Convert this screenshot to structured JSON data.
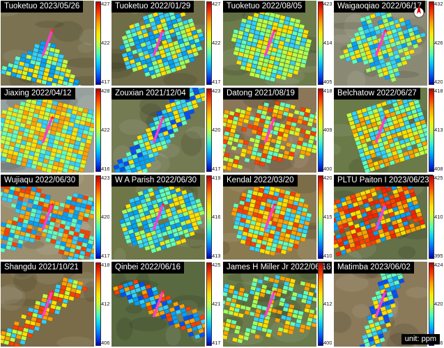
{
  "unit_label": "unit: ppm",
  "compass_icon": "north-arrow-icon",
  "panels": [
    {
      "title": "Tuoketuo 2023/05/26",
      "ticks": [
        "427",
        "422",
        "417"
      ],
      "bg": "#7a7250",
      "shape": "fan",
      "data_colors": [
        "#00a0ff",
        "#30d0ff",
        "#60ffc0",
        "#c0ff40",
        "#ffe000"
      ]
    },
    {
      "title": "Tuoketuo 2022/01/29",
      "ticks": [
        "427",
        "422",
        "417"
      ],
      "bg": "#6f6c48",
      "shape": "blob",
      "data_colors": [
        "#30d0ff",
        "#60ffc0",
        "#a0ff60",
        "#ffe000",
        "#00a0ff"
      ]
    },
    {
      "title": "Tuoketuo 2022/08/05",
      "ticks": [
        "423",
        "414",
        "405"
      ],
      "bg": "#6d7a4a",
      "shape": "circle",
      "data_colors": [
        "#60ffc0",
        "#a0ff60",
        "#30d0ff",
        "#ffe000",
        "#c0ff40"
      ]
    },
    {
      "title": "Waigaoqiao 2022/06/17",
      "ticks": [
        "432",
        "426",
        "420"
      ],
      "bg": "#8a8a74",
      "shape": "diamond",
      "data_colors": [
        "#30d0ff",
        "#60ffc0",
        "#00a0ff",
        "#a0ff60",
        "#ffe000"
      ]
    },
    {
      "title": "Jiaxing 2022/04/12",
      "ticks": [
        "428",
        "422",
        "416"
      ],
      "bg": "#97a09c",
      "shape": "wide",
      "data_colors": [
        "#ffe000",
        "#ffa000",
        "#c0ff40",
        "#60ffc0",
        "#30d0ff"
      ]
    },
    {
      "title": "Zouxian 2021/12/04",
      "ticks": [
        "423",
        "420",
        "417"
      ],
      "bg": "#747a52",
      "shape": "band",
      "data_colors": [
        "#30d0ff",
        "#60ffc0",
        "#00a0ff",
        "#ffe000",
        "#0050ff"
      ]
    },
    {
      "title": "Datong 2021/08/19",
      "ticks": [
        "418",
        "409",
        "400"
      ],
      "bg": "#8a7658",
      "shape": "scatter",
      "data_colors": [
        "#ffe000",
        "#ffa000",
        "#ff4000",
        "#60ffc0",
        "#c0ff40"
      ]
    },
    {
      "title": "Belchatow 2022/06/27",
      "ticks": [
        "418",
        "413",
        "408"
      ],
      "bg": "#6a7a48",
      "shape": "block",
      "data_colors": [
        "#ffe000",
        "#c0ff40",
        "#60ffc0",
        "#30d0ff",
        "#ffa000"
      ]
    },
    {
      "title": "Wujiaqu 2022/06/30",
      "ticks": [
        "423",
        "420",
        "417"
      ],
      "bg": "#9a9070",
      "shape": "cross",
      "data_colors": [
        "#30d0ff",
        "#60ffc0",
        "#ff4000",
        "#ffa000",
        "#00a0ff"
      ]
    },
    {
      "title": "W A Parish 2022/06/30",
      "ticks": [
        "419",
        "416",
        "413"
      ],
      "bg": "#6f7648",
      "shape": "blob",
      "data_colors": [
        "#30d0ff",
        "#60ffc0",
        "#ffe000",
        "#00a0ff",
        "#a0ff60"
      ]
    },
    {
      "title": "Kendal 2022/03/20",
      "ticks": [
        "420",
        "415",
        "410"
      ],
      "bg": "#8a7a50",
      "shape": "circle",
      "data_colors": [
        "#ffa000",
        "#ffe000",
        "#30d0ff",
        "#60ffc0",
        "#ff4000"
      ]
    },
    {
      "title": "PLTU Paiton I 2023/06/23",
      "ticks": [
        "425",
        "410",
        "395"
      ],
      "bg": "#647048",
      "shape": "orange",
      "data_colors": [
        "#ff4000",
        "#ffa000",
        "#ff2000",
        "#00a0ff",
        "#ffe000"
      ]
    },
    {
      "title": "Shangdu 2021/10/21",
      "ticks": [
        "418",
        "412",
        "406"
      ],
      "bg": "#7a6c48",
      "shape": "swath",
      "data_colors": [
        "#ffa000",
        "#ffe000",
        "#ff4000",
        "#c0ff40",
        "#30d0ff"
      ]
    },
    {
      "title": "Qinbei 2022/06/16",
      "ticks": [
        "425",
        "421",
        "417"
      ],
      "bg": "#5a6a40",
      "shape": "swathdown",
      "data_colors": [
        "#0050ff",
        "#00a0ff",
        "#30d0ff",
        "#ffa000",
        "#ff4000"
      ]
    },
    {
      "title": "James H Miller Jr 2022/06/16",
      "ticks": [
        "424",
        "412",
        "400"
      ],
      "bg": "#6a7a4a",
      "shape": "scatter",
      "data_colors": [
        "#60ffc0",
        "#a0ff60",
        "#30d0ff",
        "#ffe000",
        "#ffa000"
      ]
    },
    {
      "title": "Matimba 2023/06/02",
      "ticks": [
        "424",
        "420",
        "416"
      ],
      "bg": "#8a7a5a",
      "shape": "swath",
      "data_colors": [
        "#00a0ff",
        "#0050ff",
        "#30d0ff",
        "#60ffc0",
        "#ffe000"
      ]
    }
  ]
}
